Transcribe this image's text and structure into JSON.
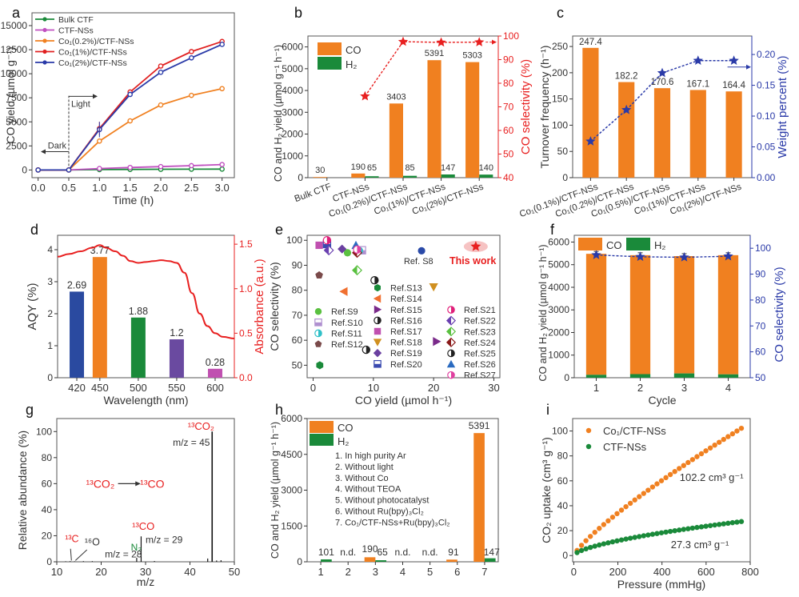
{
  "chart_data": [
    {
      "panel": "a",
      "type": "line",
      "title": "",
      "xlabel": "Time (h)",
      "ylabel": "CO yield (µmol g⁻¹)",
      "xlim": [
        -0.1,
        3.2
      ],
      "ylim": [
        -800,
        15000
      ],
      "xticks": [
        "0.0",
        "0.5",
        "1.0",
        "1.5",
        "2.0",
        "2.5",
        "3.0"
      ],
      "xtick_values": [
        0,
        0.5,
        1,
        1.5,
        2,
        2.5,
        3
      ],
      "yticks": [
        "0",
        "2500",
        "5000",
        "7500",
        "10000",
        "12500",
        "15000"
      ],
      "ytick_values": [
        0,
        2500,
        5000,
        7500,
        10000,
        12500,
        15000
      ],
      "x": [
        0,
        0.5,
        1.0,
        1.5,
        2.0,
        2.5,
        3.0
      ],
      "legend_position": "top-left",
      "series": [
        {
          "name": "Bulk CTF",
          "color": "#1a8a3a",
          "values": [
            0,
            0,
            40,
            60,
            70,
            80,
            90
          ]
        },
        {
          "name": "CTF-NSs",
          "color": "#c050c0",
          "values": [
            0,
            0,
            150,
            260,
            350,
            450,
            560
          ]
        },
        {
          "name": "Co1(0.2%)/CTF-NSs",
          "color": "#f08020",
          "values": [
            0,
            0,
            3000,
            5100,
            6750,
            7750,
            8450
          ]
        },
        {
          "name": "Co1(1%)/CTF-NSs",
          "color": "#e02020",
          "values": [
            0,
            0,
            4300,
            8100,
            10800,
            12300,
            13350
          ]
        },
        {
          "name": "Co1(2%)/CTF-NSs",
          "color": "#2a3aa8",
          "values": [
            0,
            0,
            4200,
            7850,
            10150,
            11650,
            13050
          ]
        }
      ],
      "annotations": {
        "light": "Light",
        "dark": "Dark"
      }
    },
    {
      "panel": "b",
      "type": "bar",
      "title": "",
      "xlabel": "",
      "ylabel": "CO and H₂ yield (µmol g⁻¹ h⁻¹)",
      "ylabel_right": "CO selectivity (%)",
      "ylim": [
        0,
        6500
      ],
      "ylim_right": [
        40,
        100
      ],
      "yticks": [
        "0",
        "1000",
        "2000",
        "3000",
        "4000",
        "5000",
        "6000"
      ],
      "ytick_values": [
        0,
        1000,
        2000,
        3000,
        4000,
        5000,
        6000
      ],
      "yticks_right": [
        "40",
        "50",
        "60",
        "70",
        "80",
        "90",
        "100"
      ],
      "ytick_values_right": [
        40,
        50,
        60,
        70,
        80,
        90,
        100
      ],
      "categories": [
        "Bulk CTF",
        "CTF-NSs",
        "Co1(0.2%)/CTF-NSs",
        "Co1(1%)/CTF-NSs",
        "Co1(2%)/CTF-NSs"
      ],
      "legend_position": "top-left",
      "series": [
        {
          "name": "CO",
          "color": "#f08020",
          "values": [
            30,
            190,
            3403,
            5391,
            5303
          ],
          "labels": [
            "30",
            "190",
            "3403",
            "5391",
            "5303"
          ]
        },
        {
          "name": "H2",
          "color": "#1a8a3a",
          "values": [
            0,
            65,
            85,
            147,
            140
          ],
          "labels": [
            "",
            "65",
            "85",
            "147",
            "140"
          ]
        },
        {
          "name": "CO selectivity",
          "color": "#e82020",
          "axis": "right",
          "values": [
            null,
            74.5,
            97.6,
            97.3,
            97.4
          ]
        }
      ]
    },
    {
      "panel": "c",
      "type": "bar",
      "title": "",
      "xlabel": "",
      "ylabel": "Turnover frequency (h⁻¹)",
      "ylabel_right": "Weight percent (%)",
      "ylim": [
        0,
        270
      ],
      "ylim_right": [
        0,
        0.23
      ],
      "yticks": [
        "0",
        "50",
        "100",
        "150",
        "200",
        "250"
      ],
      "ytick_values": [
        0,
        50,
        100,
        150,
        200,
        250
      ],
      "yticks_right": [
        "0.00",
        "0.05",
        "0.10",
        "0.15",
        "0.20"
      ],
      "ytick_values_right": [
        0,
        0.05,
        0.1,
        0.15,
        0.2
      ],
      "categories": [
        "Co1(0.1%)/CTF-NSs",
        "Co1(0.2%)/CTF-NSs",
        "Co1(0.5%)/CTF-NSs",
        "Co1(1%)/CTF-NSs",
        "Co1(2%)/CTF-NSs"
      ],
      "series": [
        {
          "name": "Turnover frequency",
          "color": "#f08020",
          "values": [
            247.4,
            182.2,
            170.6,
            167.1,
            164.4
          ],
          "labels": [
            "247.4",
            "182.2",
            "170.6",
            "167.1",
            "164.4"
          ]
        },
        {
          "name": "Weight percent",
          "color": "#2a3aa8",
          "axis": "right",
          "values": [
            0.059,
            0.11,
            0.17,
            0.19,
            0.19
          ]
        }
      ]
    },
    {
      "panel": "d",
      "type": "bar",
      "title": "",
      "xlabel": "Wavelength (nm)",
      "ylabel": "AQY (%)",
      "ylabel_right": "Absorbance (a.u.)",
      "xlim": [
        395,
        625
      ],
      "ylim": [
        0,
        4.45
      ],
      "ylim_right": [
        0,
        1.6
      ],
      "yticks": [
        "0",
        "1",
        "2",
        "3",
        "4"
      ],
      "ytick_values": [
        0,
        1,
        2,
        3,
        4
      ],
      "yticks_right": [
        "0.0",
        "0.5",
        "1.0",
        "1.5"
      ],
      "ytick_values_right": [
        0,
        0.5,
        1,
        1.5
      ],
      "categories": [
        "420",
        "450",
        "500",
        "550",
        "600"
      ],
      "x": [
        420,
        450,
        500,
        550,
        600
      ],
      "series": [
        {
          "name": "AQY",
          "values": [
            2.69,
            3.77,
            1.88,
            1.2,
            0.28
          ],
          "labels": [
            "2.69",
            "3.77",
            "1.88",
            "1.2",
            "0.28"
          ],
          "colors": [
            "#2a4aa0",
            "#f08020",
            "#1a8a3a",
            "#6a4aa0",
            "#c050b0"
          ]
        },
        {
          "name": "Absorbance",
          "color": "#e82020",
          "axis": "right",
          "x": [
            395,
            410,
            425,
            440,
            450,
            458,
            470,
            480,
            490,
            500,
            510,
            520,
            530,
            540,
            550,
            560,
            570,
            580,
            590,
            600,
            610,
            625
          ],
          "values": [
            1.36,
            1.39,
            1.42,
            1.46,
            1.49,
            1.46,
            1.42,
            1.37,
            1.31,
            1.29,
            1.3,
            1.31,
            1.32,
            1.31,
            1.29,
            1.18,
            0.95,
            0.72,
            0.58,
            0.5,
            0.46,
            0.44
          ]
        }
      ]
    },
    {
      "panel": "e",
      "type": "scatter",
      "title": "",
      "xlabel": "CO yield (µmol h⁻¹)",
      "ylabel": "CO selectivity (%)",
      "xlim": [
        -1,
        31
      ],
      "ylim": [
        45,
        102
      ],
      "xticks": [
        "0",
        "10",
        "20",
        "30"
      ],
      "xtick_values": [
        0,
        10,
        20,
        30
      ],
      "yticks": [
        "50",
        "60",
        "70",
        "80",
        "90",
        "100"
      ],
      "ytick_values": [
        50,
        60,
        70,
        80,
        90,
        100
      ],
      "points": [
        {
          "name": "This work",
          "x": 27,
          "y": 97.5,
          "color": "#e82020",
          "marker": "star"
        },
        {
          "name": "Ref. S8",
          "x": 18,
          "y": 95.8,
          "color": "#2a4aa8",
          "marker": "circle"
        },
        {
          "name": "Ref.S9",
          "x": 5.7,
          "y": 95,
          "color": "#5ac040",
          "marker": "circle"
        },
        {
          "name": "Ref.S10",
          "x": 8.1,
          "y": 96,
          "color": "#b090d0",
          "marker": "square-half"
        },
        {
          "name": "Ref.S11",
          "x": 7.6,
          "y": 95.8,
          "color": "#30c0c8",
          "marker": "circle-half"
        },
        {
          "name": "Ref.S12",
          "x": 1,
          "y": 86,
          "color": "#7a4a4a",
          "marker": "pentagon"
        },
        {
          "name": "Ref.S13",
          "x": 1.1,
          "y": 50,
          "color": "#1a8a3a",
          "marker": "hexagon"
        },
        {
          "name": "Ref.S14",
          "x": 5.1,
          "y": 79.5,
          "color": "#f07030",
          "marker": "triangle-left"
        },
        {
          "name": "Ref.S15",
          "x": 20.5,
          "y": 59.5,
          "color": "#7a2a8a",
          "marker": "triangle-right"
        },
        {
          "name": "Ref.S16",
          "x": 10.2,
          "y": 84,
          "color": "#222222",
          "marker": "circle-half"
        },
        {
          "name": "Ref.S17",
          "x": 1,
          "y": 98,
          "color": "#c050b0",
          "marker": "square"
        },
        {
          "name": "Ref.S18",
          "x": 20,
          "y": 81.3,
          "color": "#d09020",
          "marker": "triangle-down"
        },
        {
          "name": "Ref.S19",
          "x": 4.8,
          "y": 96.5,
          "color": "#6a40a0",
          "marker": "diamond"
        },
        {
          "name": "Ref.S20",
          "x": 2.3,
          "y": 98.5,
          "color": "#3a4ab0",
          "marker": "square-half"
        },
        {
          "name": "Ref.S21",
          "x": 2.3,
          "y": 100,
          "color": "#e0207a",
          "marker": "circle-half"
        },
        {
          "name": "Ref.S22",
          "x": 2.6,
          "y": 96,
          "color": "#6a40b0",
          "marker": "diamond-half"
        },
        {
          "name": "Ref.S23",
          "x": 7.3,
          "y": 88,
          "color": "#5ac040",
          "marker": "diamond-half"
        },
        {
          "name": "Ref.S24",
          "x": 7.3,
          "y": 95,
          "color": "#8a1a1a",
          "marker": "diamond-half"
        },
        {
          "name": "Ref.S25",
          "x": 8.8,
          "y": 56.2,
          "color": "#222222",
          "marker": "circle-half"
        },
        {
          "name": "Ref.S26",
          "x": 7.1,
          "y": 98,
          "color": "#2a6ac0",
          "marker": "triangle-up"
        },
        {
          "name": "Ref.S27",
          "x": 7.3,
          "y": 96.3,
          "color": "#e040a0",
          "marker": "circle-half"
        }
      ],
      "annotations": {
        "this_work": "This work",
        "ref_s8": "Ref. S8"
      },
      "legend_columns": [
        [
          "Ref.S9",
          "Ref.S10",
          "Ref.S11",
          "Ref.S12"
        ],
        [
          "Ref.S13",
          "Ref.S14",
          "Ref.S15",
          "Ref.S16",
          "Ref.S17",
          "Ref.S18",
          "Ref.S19",
          "Ref.S20"
        ],
        [
          "Ref.S21",
          "Ref.S22",
          "Ref.S23",
          "Ref.S24",
          "Ref.S25",
          "Ref.S26",
          "Ref.S27"
        ]
      ]
    },
    {
      "panel": "f",
      "type": "bar",
      "title": "",
      "xlabel": "Cycle",
      "ylabel": "CO and H₂ yield (µmol g⁻¹ h⁻¹)",
      "ylabel_right": "CO selectivity (%)",
      "ylim": [
        0,
        6300
      ],
      "ylim_right": [
        50,
        105
      ],
      "yticks": [
        "0",
        "1000",
        "2000",
        "3000",
        "4000",
        "5000",
        "6000"
      ],
      "ytick_values": [
        0,
        1000,
        2000,
        3000,
        4000,
        5000,
        6000
      ],
      "yticks_right": [
        "50",
        "60",
        "70",
        "80",
        "90",
        "100"
      ],
      "ytick_values_right": [
        50,
        60,
        70,
        80,
        90,
        100
      ],
      "categories": [
        "1",
        "2",
        "3",
        "4"
      ],
      "stacked": true,
      "legend_position": "top",
      "series": [
        {
          "name": "CO",
          "color": "#f08020",
          "values": [
            5480,
            5420,
            5380,
            5420
          ]
        },
        {
          "name": "H2",
          "color": "#1a8a3a",
          "values": [
            130,
            160,
            190,
            150
          ]
        },
        {
          "name": "CO selectivity",
          "color": "#2a3aa8",
          "axis": "right",
          "values": [
            97.4,
            96.7,
            96.5,
            96.9
          ]
        }
      ]
    },
    {
      "panel": "g",
      "type": "bar",
      "title": "",
      "xlabel": "m/z",
      "ylabel": "Relative abundance (%)",
      "xlim": [
        10,
        50
      ],
      "ylim": [
        0,
        110
      ],
      "xticks": [
        "10",
        "20",
        "30",
        "40",
        "50"
      ],
      "xtick_values": [
        10,
        20,
        30,
        40,
        50
      ],
      "yticks": [
        "0",
        "20",
        "40",
        "60",
        "80",
        "100"
      ],
      "ytick_values": [
        0,
        20,
        40,
        60,
        80,
        100
      ],
      "x": [
        12,
        13,
        14,
        16,
        18,
        28,
        29,
        32,
        44,
        45,
        46,
        47
      ],
      "values": [
        0.4,
        0.5,
        0.4,
        0.5,
        0.5,
        3,
        19.5,
        0.6,
        2.5,
        100,
        1,
        1.2
      ],
      "annotations": {
        "co2_label": "¹³CO₂",
        "co2_mz": "m/z = 45",
        "co_label": "¹³CO",
        "co_mz": "m/z = 29",
        "n2_label": "N₂",
        "mz28": "m/z = 28",
        "c13_label": "¹³C",
        "o16_label": "¹⁶O",
        "reaction_from": "¹³CO₂",
        "reaction_to": "¹³CO"
      }
    },
    {
      "panel": "h",
      "type": "bar",
      "title": "",
      "xlabel": "",
      "ylabel": "CO and H₂ yield (µmol g⁻¹ h⁻¹)",
      "ylim": [
        0,
        6000
      ],
      "yticks": [
        "0",
        "1500",
        "3000",
        "4500",
        "6000"
      ],
      "ytick_values": [
        0,
        1500,
        3000,
        4500,
        6000
      ],
      "categories": [
        "1",
        "2",
        "3",
        "4",
        "5",
        "6",
        "7"
      ],
      "legend_position": "top-left",
      "series": [
        {
          "name": "CO",
          "color": "#f08020",
          "values": [
            0,
            0,
            190,
            0,
            0,
            91,
            5391
          ]
        },
        {
          "name": "H2",
          "color": "#1a8a3a",
          "values": [
            101,
            0,
            65,
            0,
            0,
            0,
            147
          ]
        }
      ],
      "value_labels": [
        {
          "cat": 1,
          "text": "101"
        },
        {
          "cat": 2,
          "text": "n.d."
        },
        {
          "cat": 3,
          "text": "190",
          "side": "left"
        },
        {
          "cat": 3,
          "text": "65",
          "side": "right"
        },
        {
          "cat": 4,
          "text": "n.d."
        },
        {
          "cat": 5,
          "text": "n.d."
        },
        {
          "cat": 6,
          "text": "91"
        },
        {
          "cat": 7,
          "text": "5391",
          "side": "top"
        },
        {
          "cat": 7,
          "text": "147",
          "side": "right"
        }
      ],
      "conditions": [
        "1. In high purity Ar",
        "2. Without light",
        "3. Without Co",
        "4. Without TEOA",
        "5. Without photocatalyst",
        "6. Without Ru(bpy)₃Cl₂",
        "7. Co₁/CTF-NSs+Ru(bpy)₃Cl₂"
      ]
    },
    {
      "panel": "i",
      "type": "scatter",
      "title": "",
      "xlabel": "Pressure (mmHg)",
      "ylabel": "CO₂ uptake (cm³ g⁻¹)",
      "xlim": [
        -5,
        800
      ],
      "ylim": [
        -5,
        110
      ],
      "xticks": [
        "0",
        "200",
        "400",
        "600",
        "800"
      ],
      "xtick_values": [
        0,
        200,
        400,
        600,
        800
      ],
      "yticks": [
        "0",
        "20",
        "40",
        "60",
        "80",
        "100"
      ],
      "ytick_values": [
        0,
        20,
        40,
        60,
        80,
        100
      ],
      "legend_position": "top-left",
      "series": [
        {
          "name": "Co1/CTF-NSs",
          "color": "#f08020",
          "max_pressure": 760,
          "max_value": 102.2,
          "curve_exponent": 0.82,
          "points": 38,
          "annotation": "102.2 cm³ g⁻¹"
        },
        {
          "name": "CTF-NSs",
          "color": "#1a8a3a",
          "max_pressure": 760,
          "max_value": 27.3,
          "curve_exponent": 0.62,
          "points": 38,
          "annotation": "27.3 cm³ g⁻¹"
        }
      ]
    }
  ],
  "panel_letters": [
    "a",
    "b",
    "c",
    "d",
    "e",
    "f",
    "g",
    "h",
    "i"
  ]
}
